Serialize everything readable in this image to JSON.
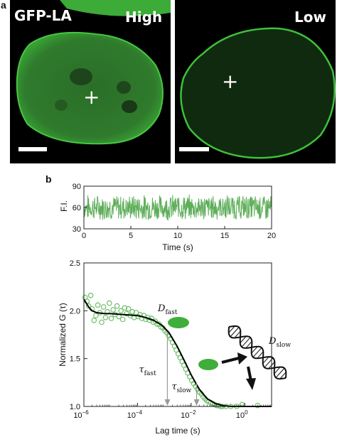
{
  "panel_a": {
    "letter": "a",
    "left_label": "GFP-LA",
    "left_level": "High",
    "right_level": "Low",
    "marker": "+"
  },
  "panel_b": {
    "letter": "b"
  },
  "colors": {
    "nucleus": "#4ec24a",
    "trace": "#5fae5a",
    "fit": "#000000",
    "points": "#6fbf6a",
    "arrow": "#9a9a9a"
  },
  "chart_data": [
    {
      "type": "line",
      "ylabel": "F.I.",
      "xlabel": "Time (s)",
      "xlim": [
        0,
        20
      ],
      "ylim": [
        30,
        90
      ],
      "xticks": [
        0,
        5,
        10,
        15,
        20
      ],
      "yticks": [
        30,
        60,
        90
      ],
      "series": [
        {
          "mean": 60,
          "range": [
            42,
            80
          ]
        }
      ]
    },
    {
      "type": "scatter",
      "ylabel": "Normalized G (τ)",
      "xlabel": "Lag time (s)",
      "xscale": "log",
      "xlim": [
        1e-06,
        10
      ],
      "ylim": [
        1.0,
        2.5
      ],
      "xtick_labels": [
        "10−6",
        "10−4",
        "10−2",
        "100"
      ],
      "xtick_values": [
        1e-06,
        0.0001,
        0.01,
        1
      ],
      "yticks": [
        1.0,
        1.5,
        2.0,
        2.5
      ],
      "yticks_labels": [
        "1.0",
        "1.5",
        "2.0",
        "2.5"
      ],
      "points": [
        [
          1.1e-06,
          2.14
        ],
        [
          1.3e-06,
          2.1
        ],
        [
          1.5e-06,
          2.05
        ],
        [
          1.8e-06,
          2.16
        ],
        [
          2e-06,
          2.02
        ],
        [
          2.4e-06,
          1.9
        ],
        [
          2.8e-06,
          1.95
        ],
        [
          3.3e-06,
          2.06
        ],
        [
          3.9e-06,
          1.98
        ],
        [
          4.6e-06,
          1.88
        ],
        [
          5.4e-06,
          2.04
        ],
        [
          6.4e-06,
          1.93
        ],
        [
          7.5e-06,
          1.99
        ],
        [
          8.9e-06,
          2.08
        ],
        [
          1.05e-05,
          1.92
        ],
        [
          1.24e-05,
          2.01
        ],
        [
          1.46e-05,
          1.96
        ],
        [
          1.72e-05,
          2.05
        ],
        [
          2.03e-05,
          1.94
        ],
        [
          2.4e-05,
          2.0
        ],
        [
          2.8e-05,
          1.91
        ],
        [
          3.3e-05,
          2.03
        ],
        [
          3.9e-05,
          1.97
        ],
        [
          4.6e-05,
          2.02
        ],
        [
          5.4e-05,
          1.95
        ],
        [
          6.4e-05,
          1.99
        ],
        [
          7.5e-05,
          1.93
        ],
        [
          8.9e-05,
          1.98
        ],
        [
          0.000105,
          1.94
        ],
        [
          0.000124,
          1.96
        ],
        [
          0.000146,
          1.92
        ],
        [
          0.000172,
          1.95
        ],
        [
          0.000203,
          1.91
        ],
        [
          0.00024,
          1.93
        ],
        [
          0.00028,
          1.9
        ],
        [
          0.00033,
          1.92
        ],
        [
          0.00039,
          1.88
        ],
        [
          0.00046,
          1.89
        ],
        [
          0.00054,
          1.86
        ],
        [
          0.00064,
          1.86
        ],
        [
          0.00075,
          1.83
        ],
        [
          0.00089,
          1.82
        ],
        [
          0.00105,
          1.79
        ],
        [
          0.00124,
          1.77
        ],
        [
          0.00146,
          1.74
        ],
        [
          0.00172,
          1.71
        ],
        [
          0.00203,
          1.67
        ],
        [
          0.0024,
          1.63
        ],
        [
          0.0028,
          1.59
        ],
        [
          0.0033,
          1.55
        ],
        [
          0.0039,
          1.51
        ],
        [
          0.0046,
          1.47
        ],
        [
          0.0054,
          1.43
        ],
        [
          0.0064,
          1.39
        ],
        [
          0.0075,
          1.35
        ],
        [
          0.0089,
          1.31
        ],
        [
          0.0105,
          1.27
        ],
        [
          0.0124,
          1.24
        ],
        [
          0.0146,
          1.21
        ],
        [
          0.0172,
          1.18
        ],
        [
          0.0203,
          1.15
        ],
        [
          0.024,
          1.13
        ],
        [
          0.028,
          1.1
        ],
        [
          0.033,
          1.08
        ],
        [
          0.039,
          1.06
        ],
        [
          0.046,
          1.05
        ],
        [
          0.054,
          1.04
        ],
        [
          0.064,
          1.03
        ],
        [
          0.075,
          1.02
        ],
        [
          0.089,
          1.01
        ],
        [
          0.105,
          1.01
        ],
        [
          0.124,
          1.0
        ],
        [
          0.146,
          1.0
        ],
        [
          0.2,
          1.0
        ],
        [
          0.3,
          1.0
        ],
        [
          0.5,
          1.0
        ],
        [
          0.8,
          1.02
        ],
        [
          3,
          1.01
        ]
      ],
      "fit": [
        [
          1e-06,
          2.12
        ],
        [
          1.5e-06,
          2.04
        ],
        [
          2e-06,
          2.0
        ],
        [
          3e-06,
          1.98
        ],
        [
          6e-06,
          1.97
        ],
        [
          1e-05,
          1.97
        ],
        [
          3e-05,
          1.96
        ],
        [
          0.0001,
          1.95
        ],
        [
          0.0002,
          1.93
        ],
        [
          0.0004,
          1.9
        ],
        [
          0.0008,
          1.85
        ],
        [
          0.0015,
          1.77
        ],
        [
          0.003,
          1.63
        ],
        [
          0.006,
          1.46
        ],
        [
          0.01,
          1.33
        ],
        [
          0.02,
          1.18
        ],
        [
          0.04,
          1.08
        ],
        [
          0.08,
          1.03
        ],
        [
          0.15,
          1.01
        ],
        [
          0.3,
          1.0
        ],
        [
          10,
          1.0
        ]
      ],
      "annotations": {
        "d_fast": {
          "main": "D",
          "sub": "fast"
        },
        "d_slow": {
          "main": "D",
          "sub": "slow"
        },
        "tau_fast": {
          "main": "τ",
          "sub": "fast",
          "x": 0.0013
        },
        "tau_slow": {
          "main": "τ",
          "sub": "slow",
          "x": 0.016
        }
      }
    }
  ]
}
